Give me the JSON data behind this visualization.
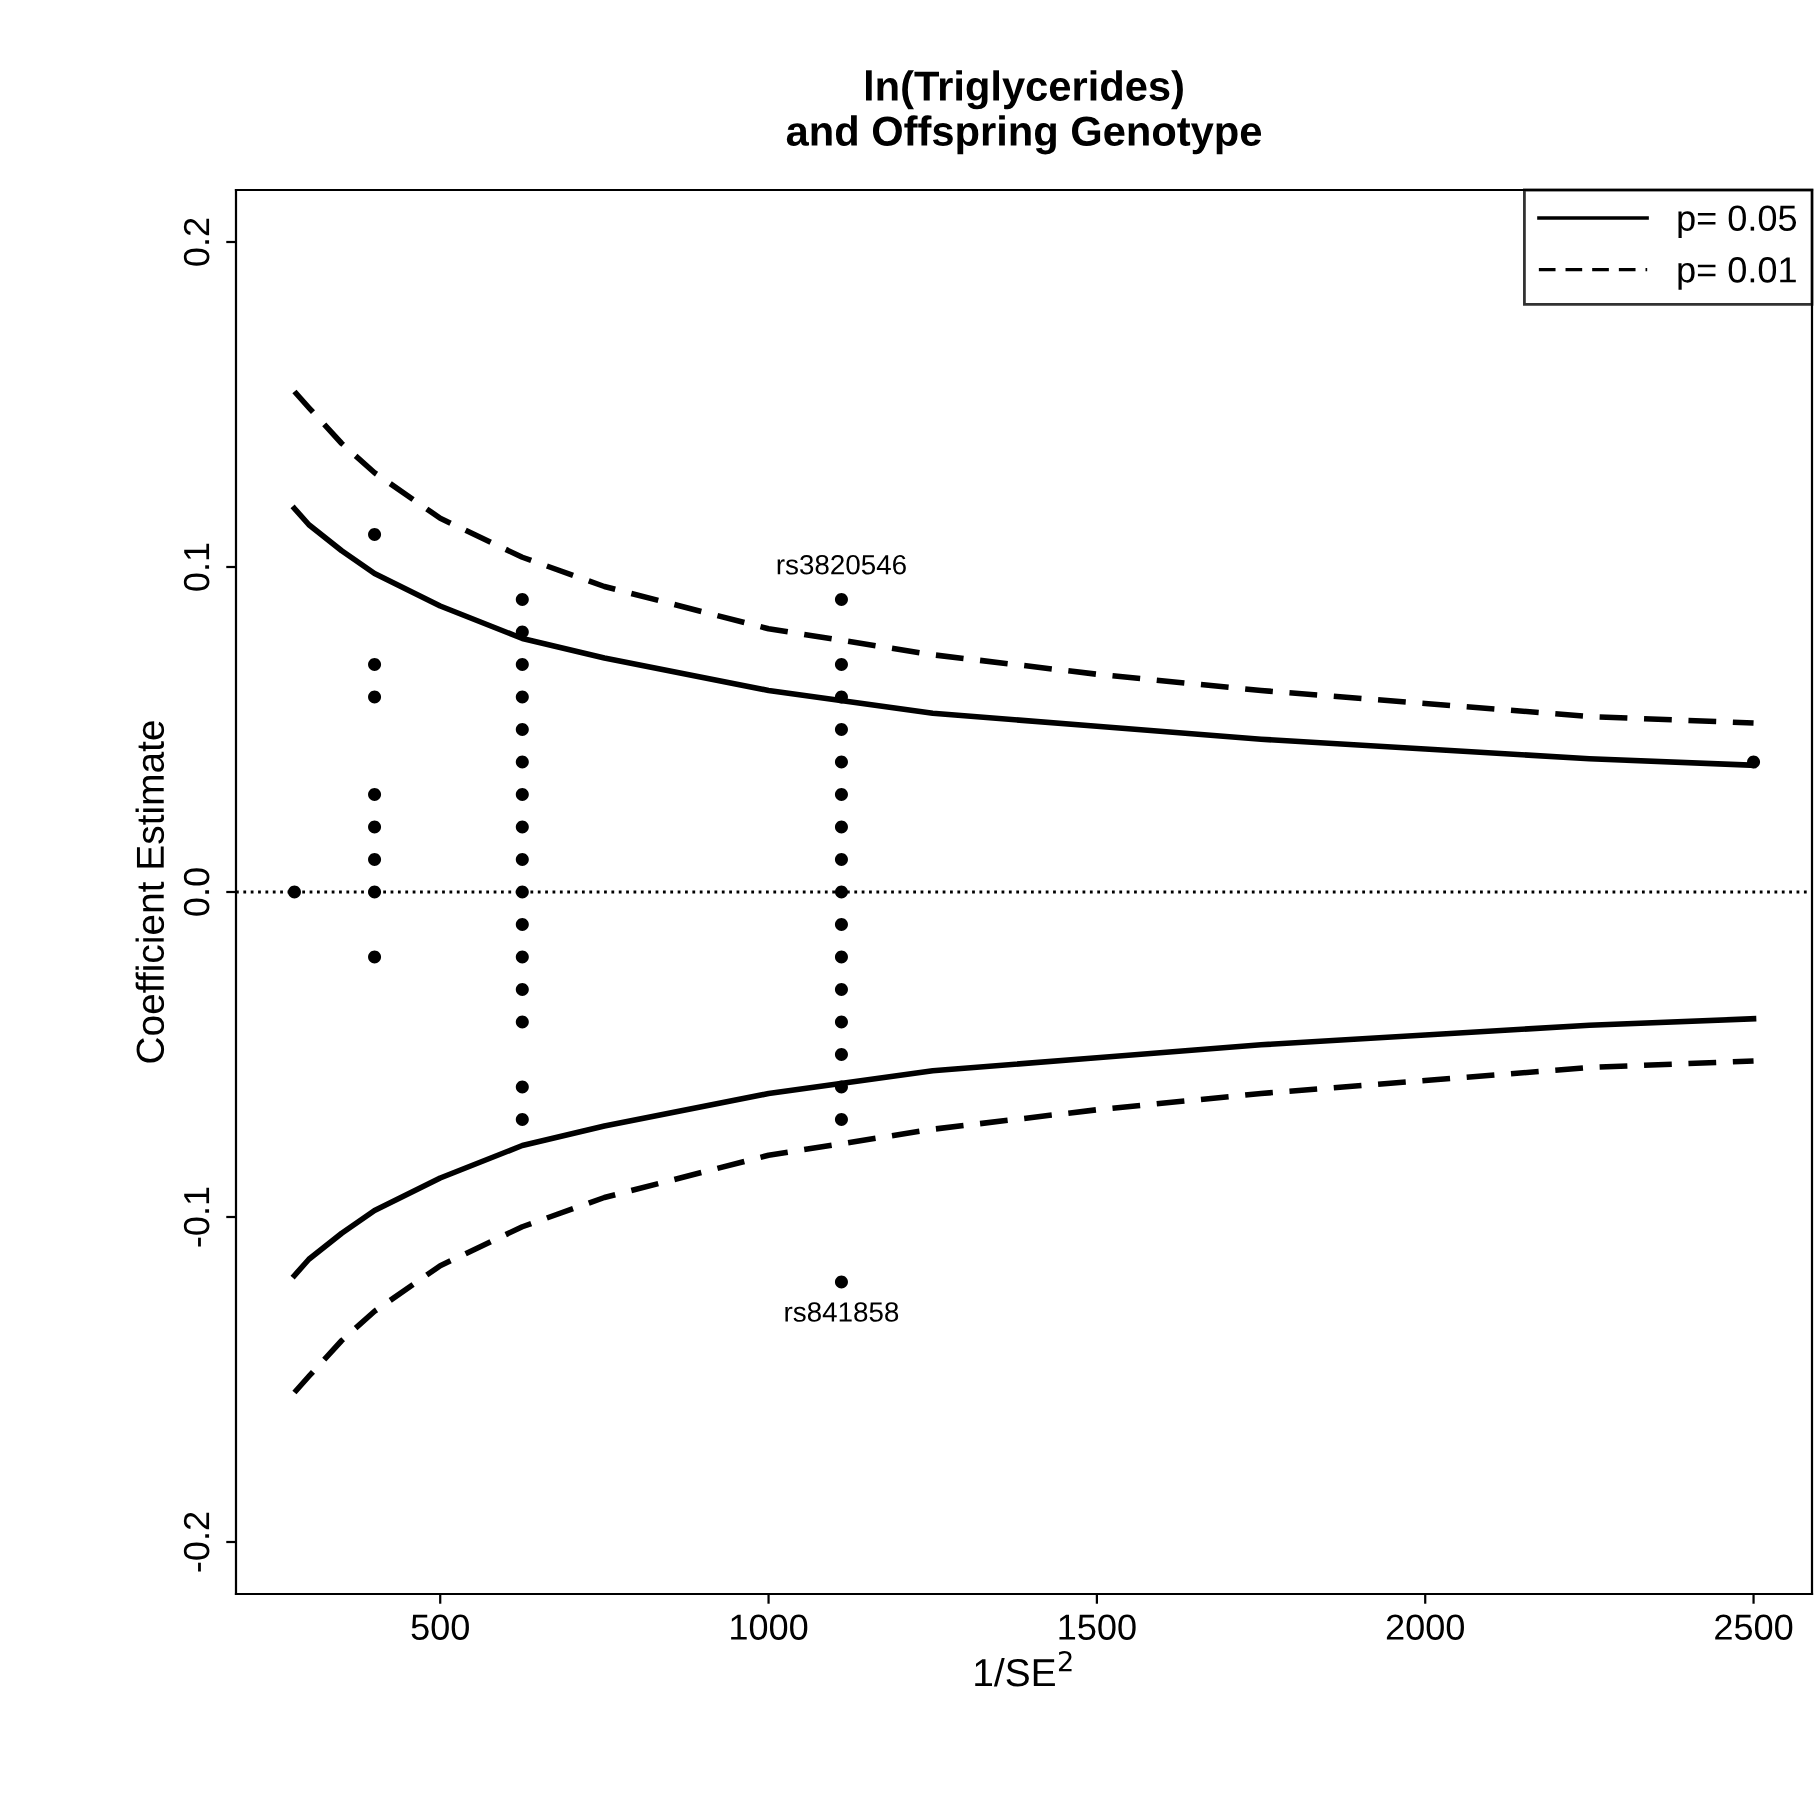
{
  "chart_data": {
    "type": "scatter",
    "title": "ln(Triglycerides)\nand Offspring Genotype",
    "xlabel": "1/SE$^{2}$",
    "ylabel": "Coefficient Estimate",
    "xlim": [
      189,
      2589
    ],
    "ylim": [
      -0.216,
      0.216
    ],
    "xticks": [
      500,
      1000,
      1500,
      2000,
      2500
    ],
    "yticks": [
      -0.2,
      -0.1,
      {
        "value": 0,
        "label": "0.0"
      },
      0.1,
      0.2
    ],
    "grid": false,
    "legend": "top right",
    "series": [
      {
        "marker": "circle",
        "color": "#000000",
        "x": [
          278,
          400,
          400,
          400,
          400,
          400,
          400,
          400,
          400,
          625,
          625,
          625,
          625,
          625,
          625,
          625,
          625,
          625,
          625,
          625,
          625,
          625,
          625,
          625,
          625,
          1111,
          1111,
          1111,
          1111,
          1111,
          1111,
          1111,
          1111,
          1111,
          1111,
          1111,
          1111,
          1111,
          1111,
          1111,
          1111,
          1111,
          2500
        ],
        "values": [
          0,
          0.11,
          0.07,
          0.06,
          0.03,
          0.02,
          0.01,
          0,
          -0.02,
          0.09,
          0.08,
          0.07,
          0.06,
          0.05,
          0.04,
          0.03,
          0.02,
          0.01,
          0,
          -0.01,
          -0.02,
          -0.03,
          -0.04,
          -0.06,
          -0.07,
          0.09,
          0.07,
          0.06,
          0.05,
          0.04,
          0.03,
          0.02,
          0.01,
          0,
          -0.01,
          -0.02,
          -0.03,
          -0.04,
          -0.05,
          -0.06,
          -0.07,
          -0.12,
          0.04
        ]
      },
      {
        "type": "line",
        "marker": "none",
        "name": "p= 0.05",
        "line_style": "solid",
        "color": "#000000",
        "x": [
          278,
          300,
          350,
          400,
          500,
          625,
          750,
          1000,
          1250,
          1500,
          1750,
          2000,
          2250,
          2500
        ],
        "values": [
          0.118,
          0.113,
          0.105,
          0.098,
          0.088,
          0.078,
          0.072,
          0.062,
          0.055,
          0.051,
          0.047,
          0.044,
          0.041,
          0.039
        ]
      },
      {
        "type": "line",
        "marker": "none",
        "line_style": "solid",
        "color": "#000000",
        "x": [
          278,
          300,
          350,
          400,
          500,
          625,
          750,
          1000,
          1250,
          1500,
          1750,
          2000,
          2250,
          2500
        ],
        "values": [
          -0.118,
          -0.113,
          -0.105,
          -0.098,
          -0.088,
          -0.078,
          -0.072,
          -0.062,
          -0.055,
          -0.051,
          -0.047,
          -0.044,
          -0.041,
          -0.039
        ]
      },
      {
        "type": "line",
        "marker": "none",
        "name": "p= 0.01",
        "line_style": "dashed",
        "color": "#000000",
        "x": [
          278,
          300,
          350,
          400,
          500,
          625,
          750,
          1000,
          1250,
          1500,
          1750,
          2000,
          2250,
          2500
        ],
        "values": [
          0.154,
          0.149,
          0.138,
          0.129,
          0.115,
          0.103,
          0.094,
          0.081,
          0.073,
          0.067,
          0.062,
          0.058,
          0.054,
          0.052
        ]
      },
      {
        "type": "line",
        "marker": "none",
        "line_style": "dashed",
        "color": "#000000",
        "x": [
          278,
          300,
          350,
          400,
          500,
          625,
          750,
          1000,
          1250,
          1500,
          1750,
          2000,
          2250,
          2500
        ],
        "values": [
          -0.154,
          -0.149,
          -0.138,
          -0.129,
          -0.115,
          -0.103,
          -0.094,
          -0.081,
          -0.073,
          -0.067,
          -0.062,
          -0.058,
          -0.054,
          -0.052
        ]
      }
    ],
    "ref_lines": [
      {
        "axis": "y",
        "value": 0,
        "line_style": "dotted",
        "color": "#000000"
      }
    ],
    "annotations": [
      {
        "text": "rs3820546",
        "x": 1111,
        "y": 0.09
      },
      {
        "text": "rs841858",
        "x": 1111,
        "y": -0.12
      }
    ]
  }
}
